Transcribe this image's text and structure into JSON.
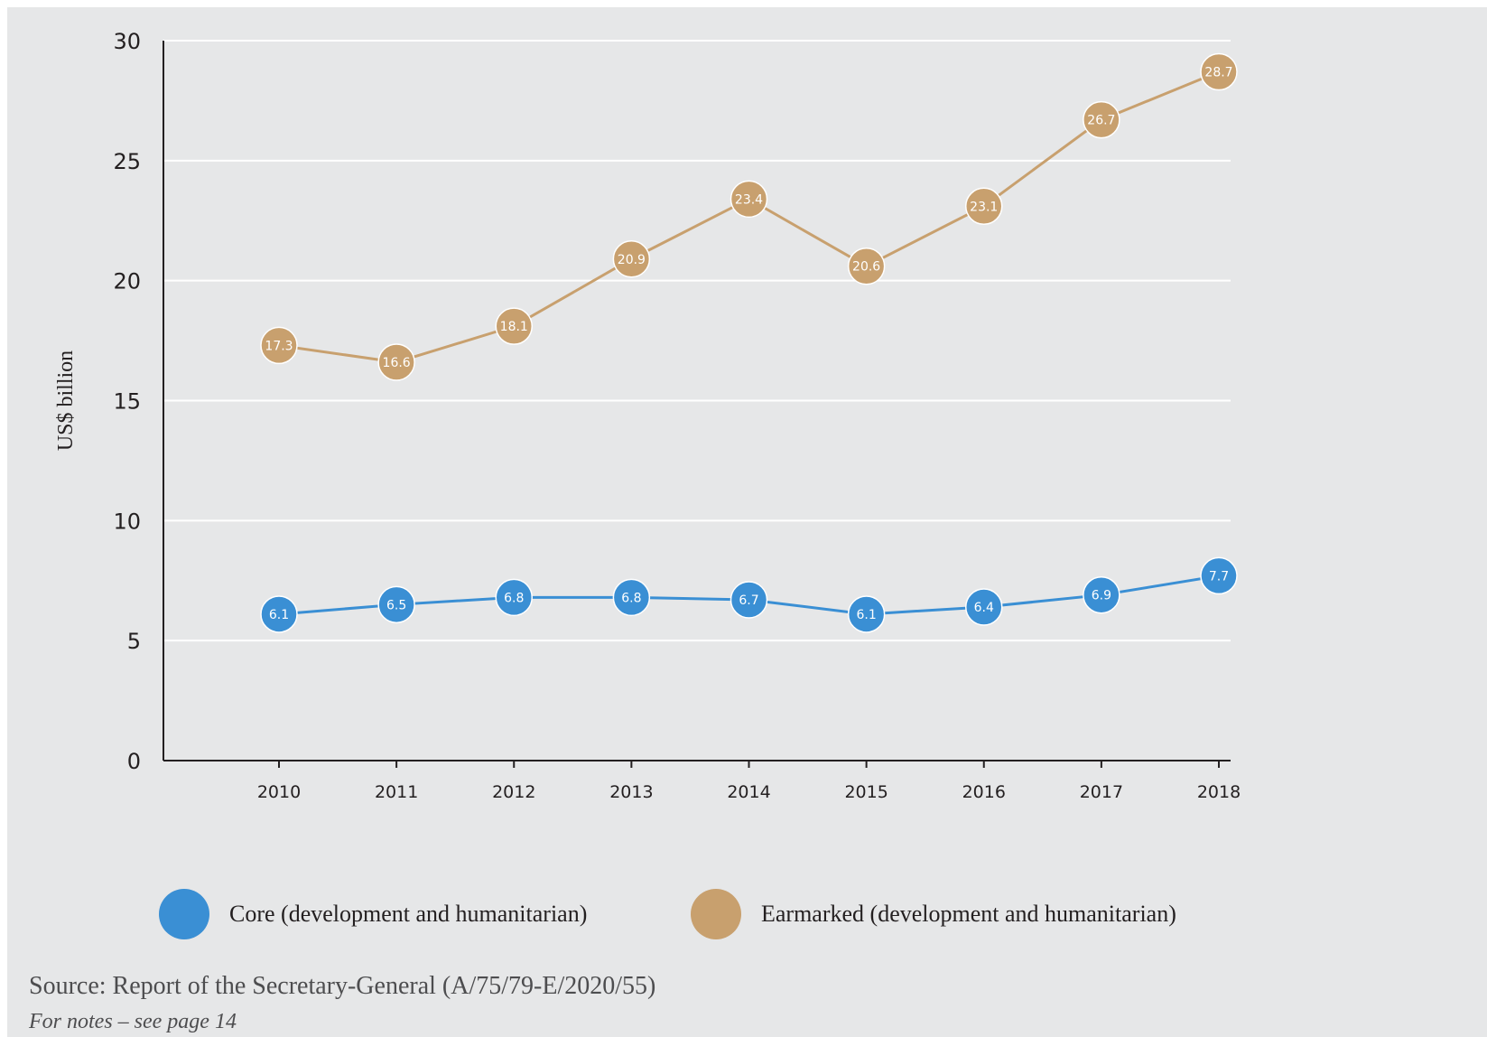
{
  "chart_data": {
    "type": "line",
    "ylabel": "US$ billion",
    "xlabel": "",
    "ylim": [
      0,
      30
    ],
    "yticks": [
      0,
      5,
      10,
      15,
      20,
      25,
      30
    ],
    "categories": [
      "2010",
      "2011",
      "2012",
      "2013",
      "2014",
      "2015",
      "2016",
      "2017",
      "2018"
    ],
    "grid": "horizontal",
    "legend_position": "bottom",
    "series": [
      {
        "name": "Core (development and humanitarian)",
        "color": "#3a8fd4",
        "values": [
          6.1,
          6.5,
          6.8,
          6.8,
          6.7,
          6.1,
          6.4,
          6.9,
          7.7
        ]
      },
      {
        "name": "Earmarked (development and humanitarian)",
        "color": "#c8a06e",
        "values": [
          17.3,
          16.6,
          18.1,
          20.9,
          23.4,
          20.6,
          23.1,
          26.7,
          28.7
        ]
      }
    ]
  },
  "source": "Source: Report of the Secretary-General (A/75/79-E/2020/55)",
  "notes": "For notes – see page 14"
}
